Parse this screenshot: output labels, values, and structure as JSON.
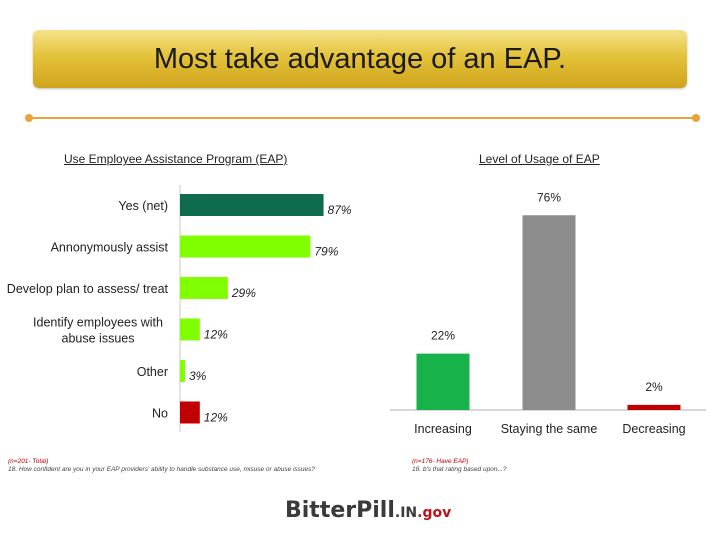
{
  "header": {
    "title": "Most take advantage of an EAP."
  },
  "chart_data": [
    {
      "type": "bar",
      "orientation": "horizontal",
      "title": "Use Employee Assistance Program (EAP)",
      "categories": [
        "Yes (net)",
        "Annonymously assist",
        "Develop plan to assess/ treat",
        "Identify employees with abuse issues",
        "Other",
        "No"
      ],
      "values": [
        87,
        79,
        29,
        12,
        3,
        12
      ],
      "value_labels": [
        "87%",
        "79%",
        "29%",
        "12%",
        "3%",
        "12%"
      ],
      "colors": [
        "#0e6b4e",
        "#7fff00",
        "#7fff00",
        "#7fff00",
        "#7fff00",
        "#c00000"
      ],
      "xlim": [
        0,
        100
      ]
    },
    {
      "type": "bar",
      "orientation": "vertical",
      "title": "Level of Usage of EAP",
      "categories": [
        "Increasing",
        "Staying the same",
        "Decreasing"
      ],
      "values": [
        22,
        76,
        2
      ],
      "value_labels": [
        "22%",
        "76%",
        "2%"
      ],
      "colors": [
        "#18b24a",
        "#8c8c8c",
        "#c00000"
      ],
      "ylim": [
        0,
        80
      ]
    }
  ],
  "footnotes": {
    "left_n": "(n=201- Total)",
    "left_q": "18. How confident are you in your EAP providers' ability to handle substance use, misuse or abuse issues?",
    "right_n": "(n=176- Have EAP)",
    "right_q": "18. b's that rating based upon...?"
  },
  "logo": {
    "text1": "Bitter",
    "text2": "Pill",
    "text3": ".IN",
    "text4": ".gov"
  }
}
